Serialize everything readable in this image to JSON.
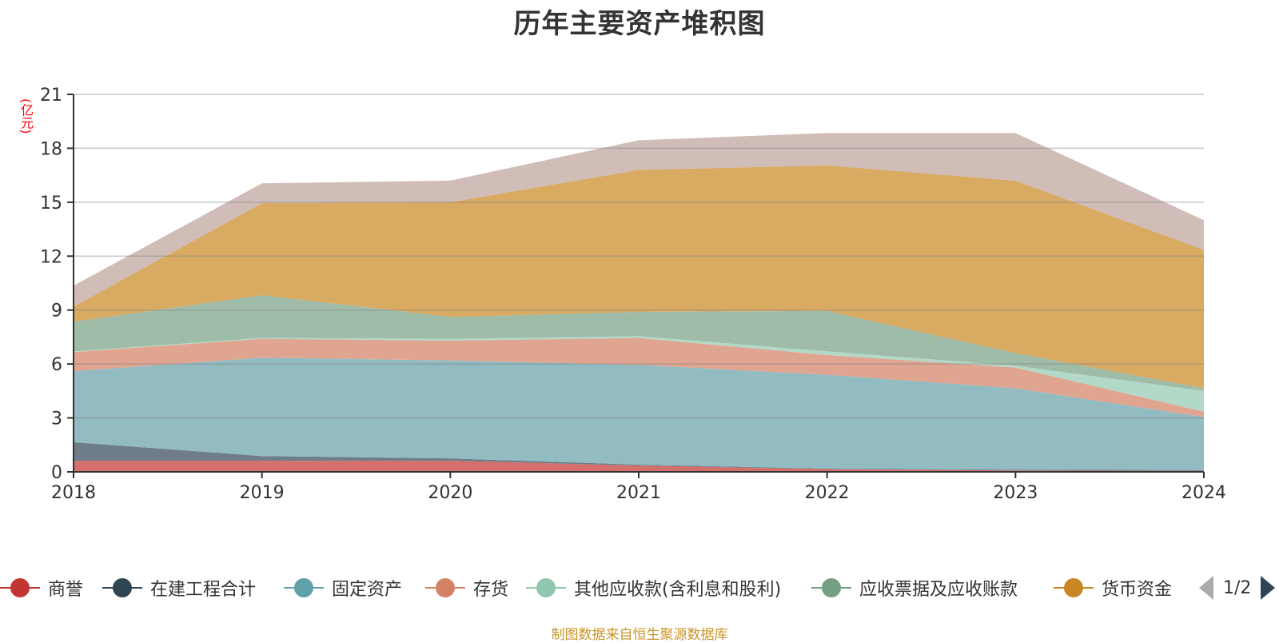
{
  "chart_data": {
    "type": "area",
    "stacked": true,
    "title": "历年主要资产堆积图",
    "unit_label": "(亿元)",
    "xlabel": "",
    "ylabel": "(亿元)",
    "x": [
      "2018",
      "2019",
      "2020",
      "2021",
      "2022",
      "2023",
      "2024"
    ],
    "ylim": [
      0,
      21
    ],
    "yticks": [
      "0",
      "3",
      "6",
      "9",
      "12",
      "15",
      "18",
      "21"
    ],
    "ytick_values": [
      0,
      3,
      6,
      9,
      12,
      15,
      18,
      21
    ],
    "grid": true,
    "legend_position": "bottom",
    "series": [
      {
        "name": "商誉",
        "color": "#c23531",
        "fill": "#d46f6c",
        "values": [
          0.62,
          0.62,
          0.62,
          0.35,
          0.15,
          0.08,
          0.05
        ]
      },
      {
        "name": "在建工程合计",
        "color": "#2f4554",
        "fill": "#6e7d87",
        "values": [
          1.03,
          0.26,
          0.13,
          0.05,
          0.03,
          0.04,
          0.05
        ]
      },
      {
        "name": "固定资产",
        "color": "#61a0a8",
        "fill": "#92bbc2",
        "values": [
          3.95,
          5.47,
          5.45,
          5.55,
          5.22,
          4.53,
          2.95
        ]
      },
      {
        "name": "存货",
        "color": "#d48265",
        "fill": "#e0a591",
        "values": [
          1.07,
          1.05,
          1.1,
          1.5,
          1.1,
          1.15,
          0.3
        ]
      },
      {
        "name": "其他应收款(含利息和股利)",
        "color": "#91c7ae",
        "fill": "#b2d8c7",
        "values": [
          0.03,
          0.05,
          0.1,
          0.1,
          0.2,
          0.1,
          1.15
        ]
      },
      {
        "name": "应收票据及应收账款",
        "color": "#749f83",
        "fill": "#9fbca9",
        "values": [
          1.66,
          2.37,
          1.22,
          1.35,
          2.25,
          0.7,
          0.15
        ]
      },
      {
        "name": "货币资金",
        "color": "#ca8622",
        "fill": "#d8aa62",
        "values": [
          0.84,
          5.13,
          6.38,
          7.9,
          8.1,
          9.6,
          7.7
        ]
      },
      {
        "name": "",
        "color": "#bda29a",
        "fill": "#d0bdb8",
        "values": [
          1.16,
          1.1,
          1.2,
          1.65,
          1.8,
          2.65,
          1.65
        ],
        "on_legend_page": 2
      }
    ]
  },
  "legend": {
    "items": [
      "商誉",
      "在建工程合计",
      "固定资产",
      "存货",
      "其他应收款(含利息和股利)",
      "应收票据及应收账款",
      "货币资金"
    ],
    "colors": [
      "#c23531",
      "#2f4554",
      "#61a0a8",
      "#d48265",
      "#91c7ae",
      "#749f83",
      "#ca8622"
    ],
    "page": "1/2"
  },
  "footer": {
    "source": "制图数据来自恒生聚源数据库"
  }
}
